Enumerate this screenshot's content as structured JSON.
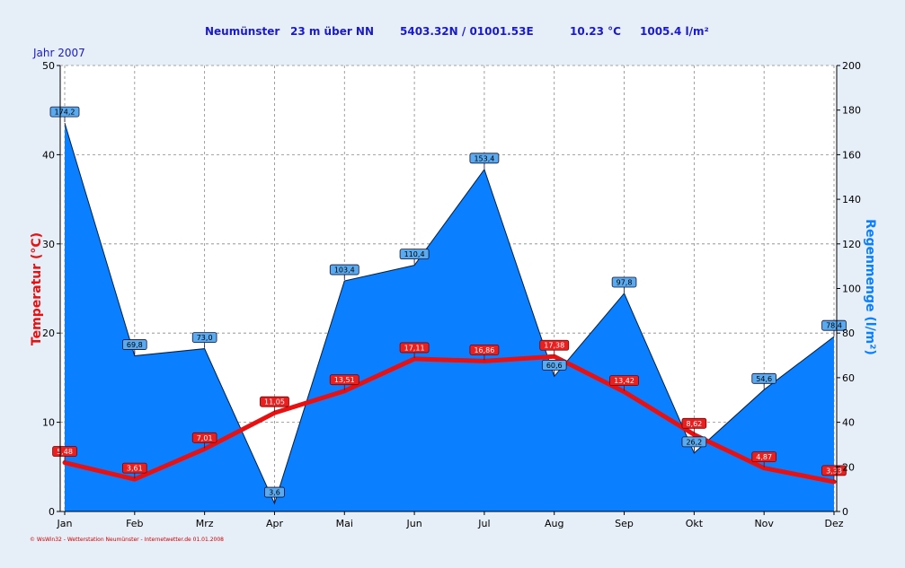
{
  "header": {
    "station": "Neumünster",
    "altitude": "23 m über NN",
    "coords": "5403.32N / 01001.53E",
    "temp": "10.23 °C",
    "rain": "1005.4 l/m²"
  },
  "year_label": "Jahr  2007",
  "footer": "© WsWin32 - Wetterstation Neumünster - Internetwetter.de  01.01.2008",
  "colors": {
    "temp": "#e81010",
    "rain": "#0a7fff",
    "header": "#1a1acc",
    "background": "#e6eef7"
  },
  "chart_data": {
    "type": "line",
    "categories": [
      "Jan",
      "Feb",
      "Mrz",
      "Apr",
      "Mai",
      "Jun",
      "Jul",
      "Aug",
      "Sep",
      "Okt",
      "Nov",
      "Dez"
    ],
    "y_left": {
      "label": "Temperatur  (°C)",
      "ylim": [
        0,
        50
      ],
      "ticks": [
        0,
        10,
        20,
        30,
        40,
        50
      ]
    },
    "y_right": {
      "label": "Regenmenge  (l/m²)",
      "ylim": [
        0,
        200
      ],
      "ticks": [
        0,
        20,
        40,
        60,
        80,
        100,
        120,
        140,
        160,
        180,
        200
      ]
    },
    "grid": true,
    "series": [
      {
        "axis": "right",
        "kind": "area",
        "values": [
          174.2,
          69.8,
          73.0,
          3.6,
          103.4,
          110.4,
          153.4,
          60.6,
          97.8,
          26.2,
          54.6,
          78.4
        ],
        "labels": [
          "174,2",
          "69,8",
          "73,0",
          "3,6",
          "103,4",
          "110,4",
          "153,4",
          "60,6",
          "97,8",
          "26,2",
          "54,6",
          "78,4"
        ]
      },
      {
        "axis": "left",
        "kind": "line",
        "values": [
          5.48,
          3.61,
          7.01,
          11.05,
          13.51,
          17.11,
          16.86,
          17.38,
          13.42,
          8.62,
          4.87,
          3.33
        ],
        "labels": [
          "5,48",
          "3,61",
          "7,01",
          "11,05",
          "13,51",
          "17,11",
          "16,86",
          "17,38",
          "13,42",
          "8,62",
          "4,87",
          "3,33"
        ]
      }
    ]
  }
}
